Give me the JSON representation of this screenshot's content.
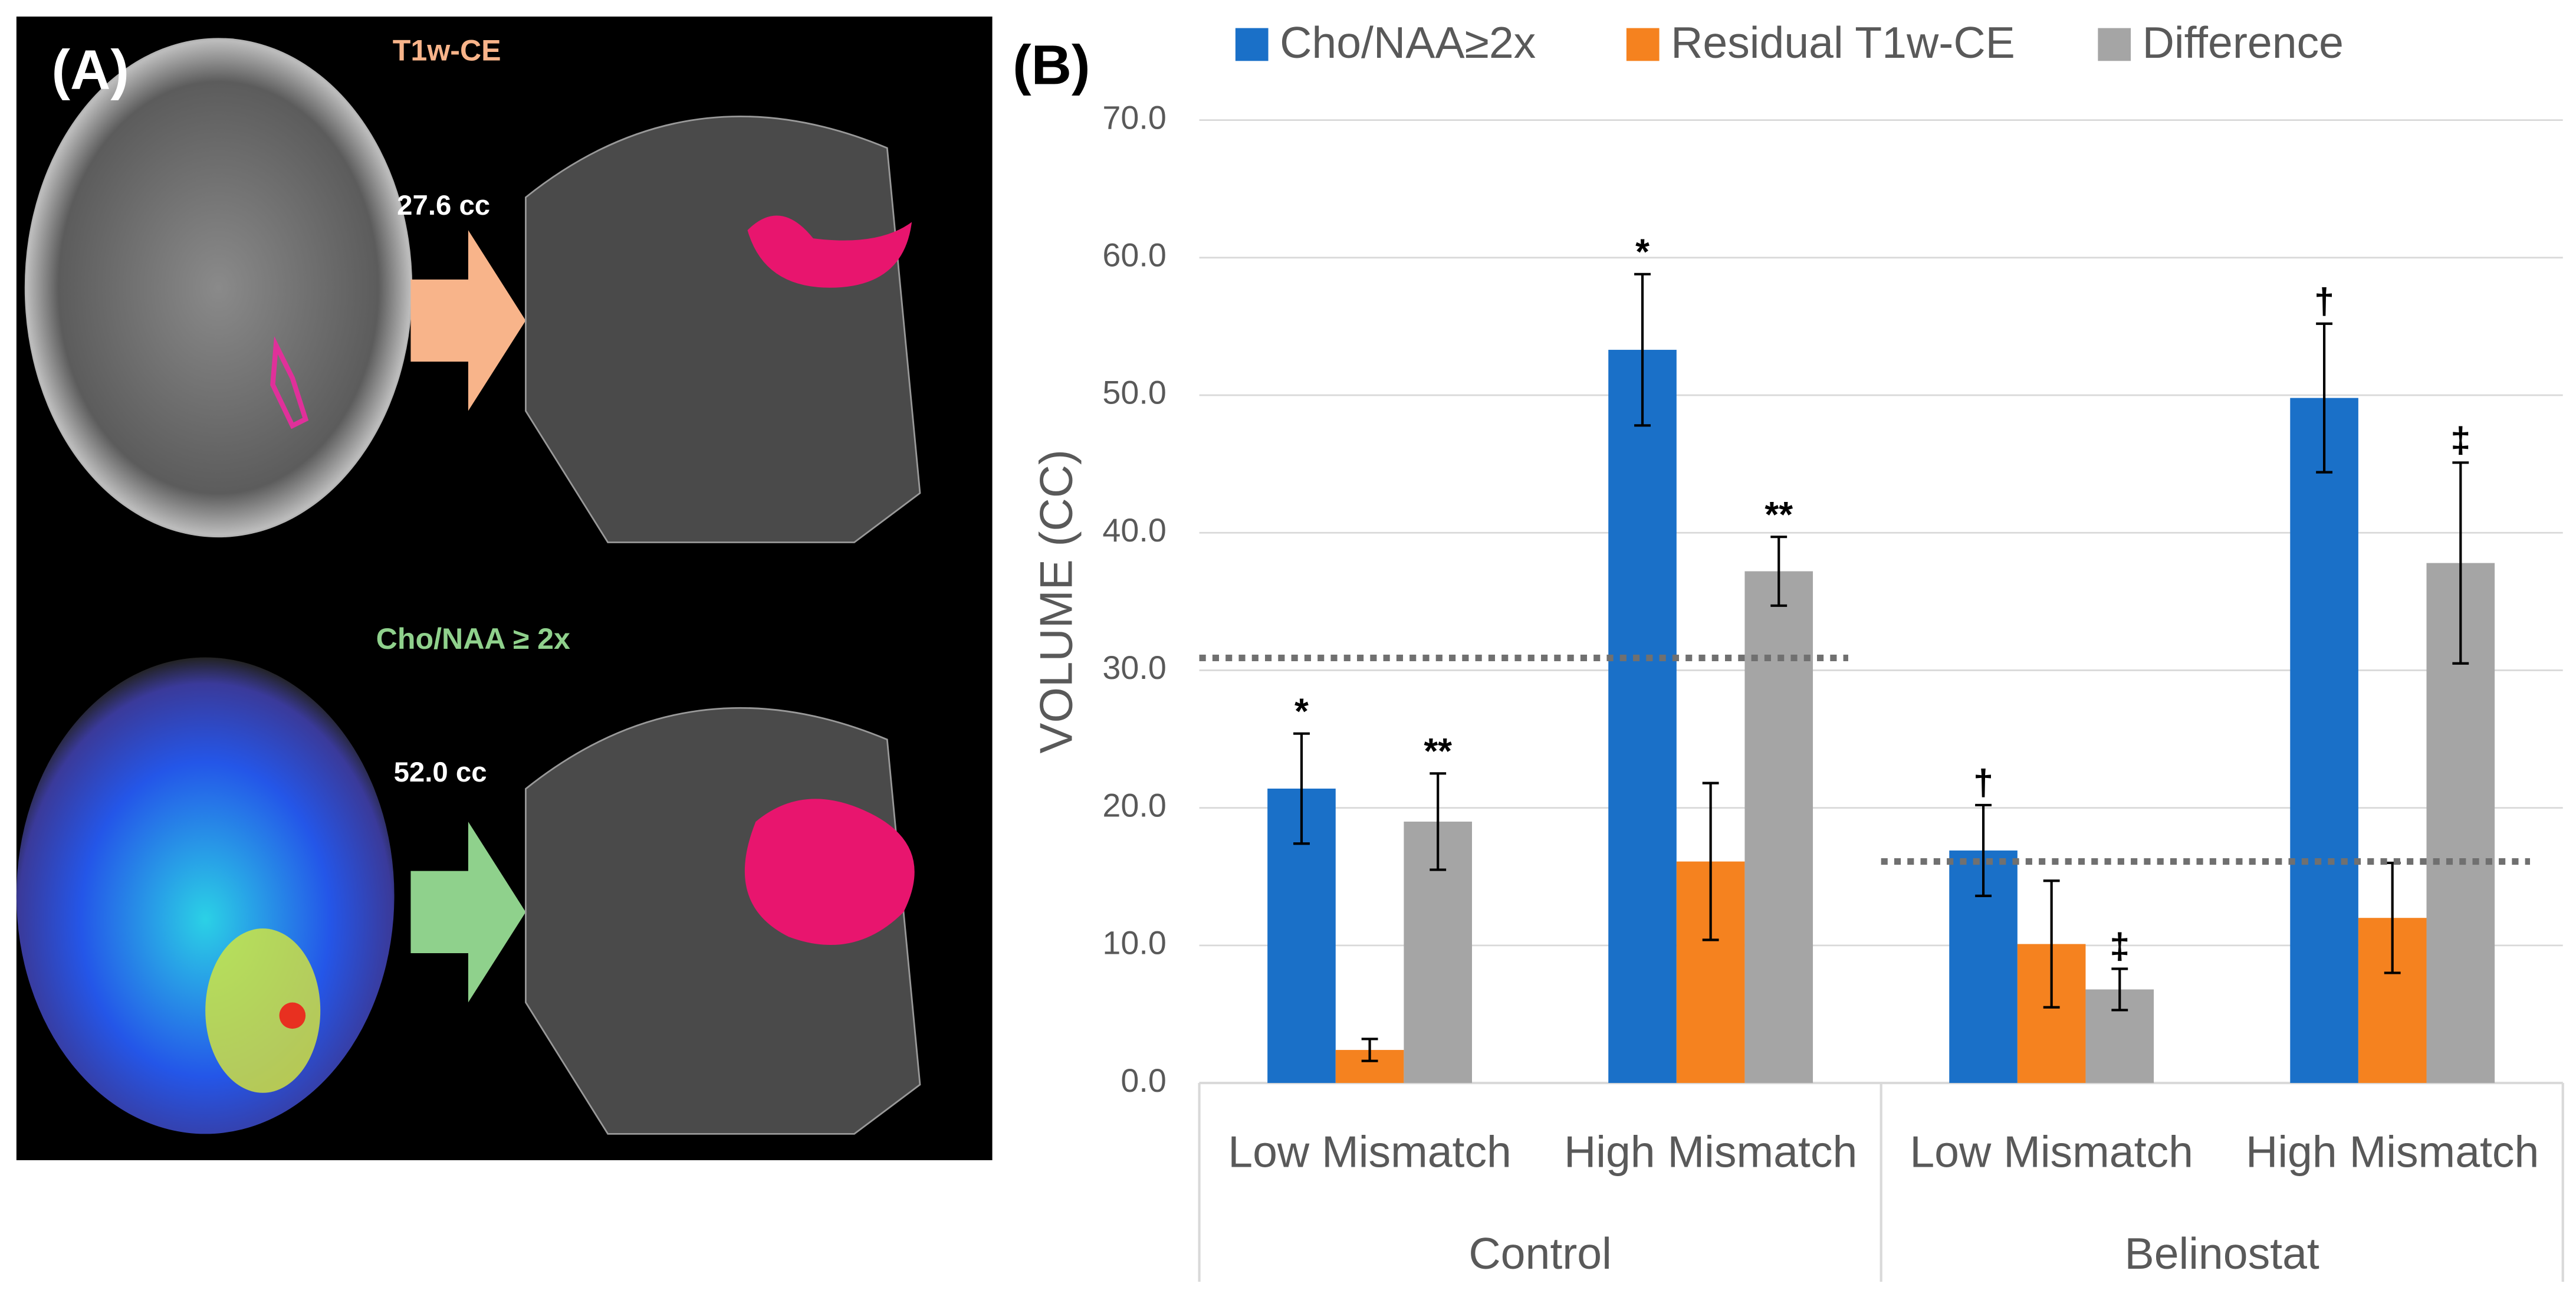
{
  "panel_a": {
    "label": "(A)",
    "top_title": "T1w-CE",
    "top_volume": "27.6 cc",
    "bottom_title": "Cho/NAA ≥ 2x",
    "bottom_volume": "52.0 cc"
  },
  "chart_data": {
    "type": "bar",
    "panel_label": "(B)",
    "y_label": "VOLUME (CC)",
    "groups": [
      "Control",
      "Belinostat"
    ],
    "categories": [
      "Low Mismatch",
      "High Mismatch",
      "Low Mismatch",
      "High Mismatch"
    ],
    "series": [
      {
        "name": "Cho/NAA≥2x",
        "color": "#1a70c8",
        "values": [
          21.4,
          53.3,
          16.9,
          49.8
        ],
        "errors": [
          4.0,
          5.5,
          3.3,
          5.4
        ],
        "annotations": [
          "*",
          "*",
          "†",
          "†"
        ]
      },
      {
        "name": "Residual T1w-CE",
        "color": "#f5821f",
        "values": [
          2.4,
          16.1,
          10.1,
          12.0
        ],
        "errors": [
          0.8,
          5.7,
          4.6,
          4.0
        ]
      },
      {
        "name": "Difference",
        "color": "#a5a5a5",
        "values": [
          19.0,
          37.2,
          6.8,
          37.8
        ],
        "errors": [
          3.5,
          2.5,
          1.5,
          7.3
        ],
        "annotations": [
          "**",
          "**",
          "‡",
          "‡"
        ]
      }
    ],
    "reference_lines": [
      30.9,
      16.1
    ],
    "ylim": [
      0,
      70
    ],
    "yticks": [
      {
        "value": 0,
        "label": "0.0"
      },
      {
        "value": 10,
        "label": "10.0"
      },
      {
        "value": 20,
        "label": "20.0"
      },
      {
        "value": 30,
        "label": "30.0"
      },
      {
        "value": 40,
        "label": "40.0"
      },
      {
        "value": 50,
        "label": "50.0"
      },
      {
        "value": 60,
        "label": "60.0"
      },
      {
        "value": 70,
        "label": "70.0"
      }
    ],
    "grid": true,
    "legend": "top"
  }
}
